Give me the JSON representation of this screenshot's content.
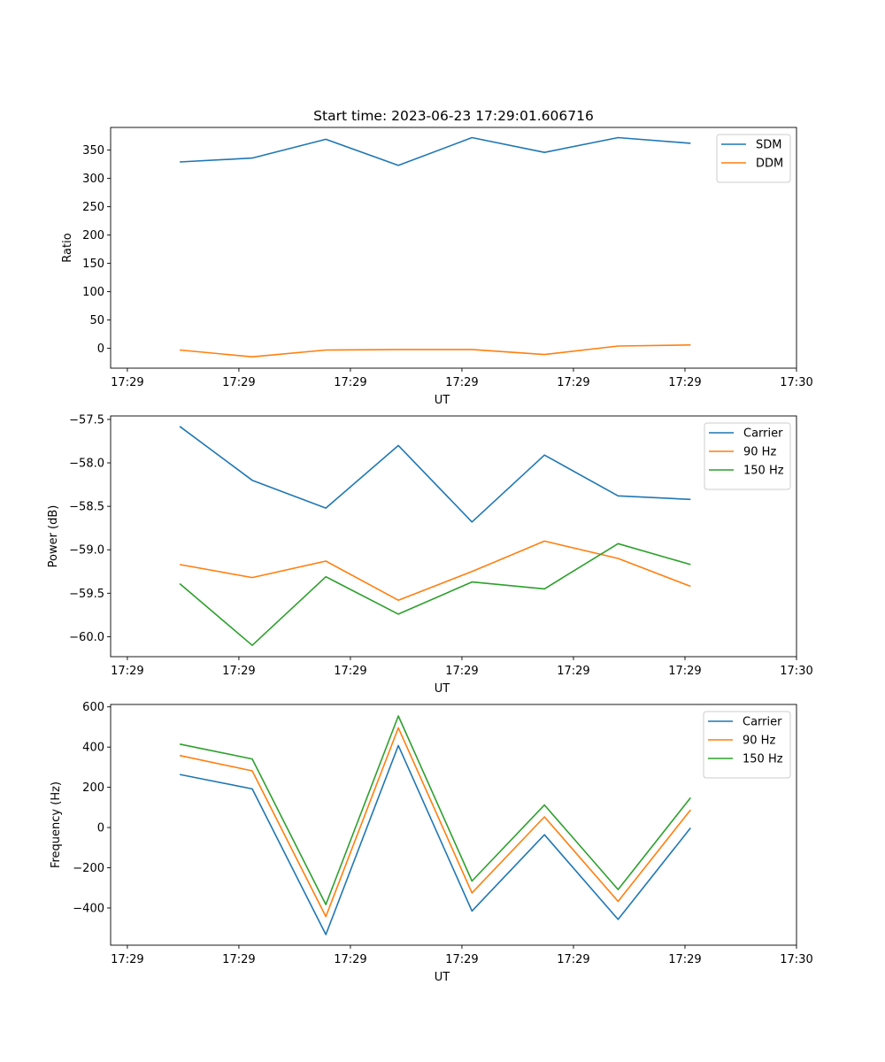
{
  "title": "Start time: 2023-06-23 17:29:01.606716",
  "colors": {
    "blue": "#1f77b4",
    "orange": "#ff7f0e",
    "green": "#2ca02c"
  },
  "chart_data": [
    {
      "type": "line",
      "title": "Start time: 2023-06-23 17:29:01.606716",
      "xlabel": "UT",
      "ylabel": "Ratio",
      "x_tick_labels": [
        "17:29",
        "17:29",
        "17:29",
        "17:29",
        "17:29",
        "17:29",
        "17:30"
      ],
      "x_tick_values": [
        0,
        1,
        2,
        3,
        4,
        5,
        6
      ],
      "x_values": [
        0.47,
        1.12,
        1.78,
        2.43,
        3.09,
        3.74,
        4.4,
        5.05
      ],
      "xlim": [
        -0.15,
        6.0
      ],
      "ylim": [
        -35,
        390
      ],
      "y_ticks": [
        0,
        50,
        100,
        150,
        200,
        250,
        300,
        350
      ],
      "y_tick_labels": [
        "0",
        "50",
        "100",
        "150",
        "200",
        "250",
        "300",
        "350"
      ],
      "legend_position": "top-right",
      "series": [
        {
          "name": "SDM",
          "color": "#1f77b4",
          "values": [
            329,
            336,
            369,
            323,
            372,
            346,
            372,
            362
          ]
        },
        {
          "name": "DDM",
          "color": "#ff7f0e",
          "values": [
            -3,
            -15,
            -3,
            -2,
            -2,
            -11,
            4,
            6
          ]
        }
      ]
    },
    {
      "type": "line",
      "xlabel": "UT",
      "ylabel": "Power (dB)",
      "x_tick_labels": [
        "17:29",
        "17:29",
        "17:29",
        "17:29",
        "17:29",
        "17:29",
        "17:30"
      ],
      "x_tick_values": [
        0,
        1,
        2,
        3,
        4,
        5,
        6
      ],
      "x_values": [
        0.47,
        1.12,
        1.78,
        2.43,
        3.09,
        3.74,
        4.4,
        5.05
      ],
      "xlim": [
        -0.15,
        6.0
      ],
      "ylim": [
        -60.23,
        -57.46
      ],
      "y_ticks": [
        -60.0,
        -59.5,
        -59.0,
        -58.5,
        -58.0,
        -57.5
      ],
      "y_tick_labels": [
        "−60.0",
        "−59.5",
        "−59.0",
        "−58.5",
        "−58.0",
        "−57.5"
      ],
      "legend_position": "top-right",
      "series": [
        {
          "name": "Carrier",
          "color": "#1f77b4",
          "values": [
            -57.58,
            -58.2,
            -58.52,
            -57.8,
            -58.68,
            -57.91,
            -58.38,
            -58.42
          ]
        },
        {
          "name": "90 Hz",
          "color": "#ff7f0e",
          "values": [
            -59.17,
            -59.32,
            -59.13,
            -59.58,
            -59.25,
            -58.9,
            -59.1,
            -59.42
          ]
        },
        {
          "name": "150 Hz",
          "color": "#2ca02c",
          "values": [
            -59.39,
            -60.1,
            -59.31,
            -59.74,
            -59.37,
            -59.45,
            -58.93,
            -59.17
          ]
        }
      ]
    },
    {
      "type": "line",
      "xlabel": "UT",
      "ylabel": "Frequency (Hz)",
      "x_tick_labels": [
        "17:29",
        "17:29",
        "17:29",
        "17:29",
        "17:29",
        "17:29",
        "17:30"
      ],
      "x_tick_values": [
        0,
        1,
        2,
        3,
        4,
        5,
        6
      ],
      "x_values": [
        0.47,
        1.12,
        1.78,
        2.43,
        3.09,
        3.74,
        4.4,
        5.05
      ],
      "xlim": [
        -0.15,
        6.0
      ],
      "ylim": [
        -585,
        612
      ],
      "y_ticks": [
        -400,
        -200,
        0,
        200,
        400,
        600
      ],
      "y_tick_labels": [
        "−400",
        "−200",
        "0",
        "200",
        "400",
        "600"
      ],
      "legend_position": "top-right",
      "series": [
        {
          "name": "Carrier",
          "color": "#1f77b4",
          "values": [
            264,
            192,
            -532,
            408,
            -415,
            -36,
            -457,
            -2
          ]
        },
        {
          "name": "90 Hz",
          "color": "#ff7f0e",
          "values": [
            358,
            282,
            -443,
            496,
            -325,
            53,
            -367,
            88
          ]
        },
        {
          "name": "150 Hz",
          "color": "#2ca02c",
          "values": [
            415,
            341,
            -383,
            555,
            -266,
            112,
            -308,
            148
          ]
        }
      ]
    }
  ]
}
